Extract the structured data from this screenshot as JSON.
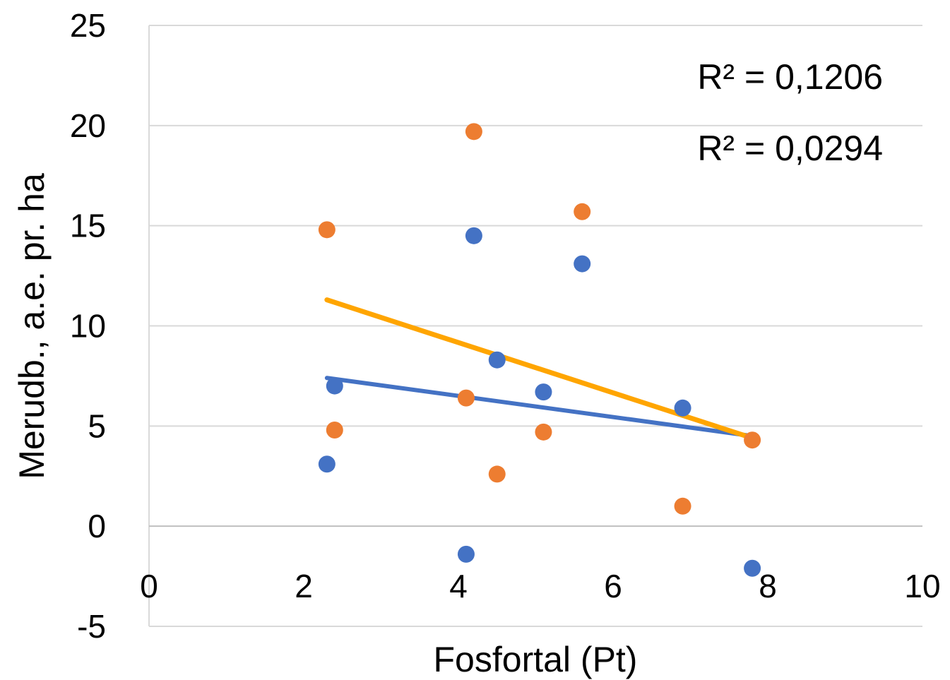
{
  "chart_data": {
    "type": "scatter",
    "xlabel": "Fosfortal (Pt)",
    "ylabel": "Merudb., a.e. pr. ha",
    "xlim": [
      0,
      10
    ],
    "ylim": [
      -5,
      25
    ],
    "xticks": [
      0,
      2,
      4,
      6,
      8,
      10
    ],
    "yticks": [
      -5,
      0,
      5,
      10,
      15,
      20,
      25
    ],
    "xtick_labels": [
      "0",
      "2",
      "4",
      "6",
      "8",
      "10"
    ],
    "ytick_labels": [
      "-5",
      "0",
      "5",
      "10",
      "15",
      "20",
      "25"
    ],
    "grid": "horizontal",
    "legend": "none",
    "series": [
      {
        "color": "#4472c4",
        "points": [
          {
            "x": 2.3,
            "y": 3.1
          },
          {
            "x": 2.4,
            "y": 7.0
          },
          {
            "x": 4.1,
            "y": -1.4
          },
          {
            "x": 4.2,
            "y": 14.5
          },
          {
            "x": 4.5,
            "y": 8.3
          },
          {
            "x": 5.1,
            "y": 6.7
          },
          {
            "x": 5.6,
            "y": 13.1
          },
          {
            "x": 6.9,
            "y": 5.9
          },
          {
            "x": 7.8,
            "y": -2.1
          }
        ],
        "trendline": {
          "x": [
            2.3,
            7.8
          ],
          "y": [
            7.4,
            4.5
          ],
          "color": "#4472c4"
        }
      },
      {
        "color": "#ed7d31",
        "points": [
          {
            "x": 2.3,
            "y": 14.8
          },
          {
            "x": 2.4,
            "y": 4.8
          },
          {
            "x": 4.1,
            "y": 6.4
          },
          {
            "x": 4.2,
            "y": 19.7
          },
          {
            "x": 4.5,
            "y": 2.6
          },
          {
            "x": 5.1,
            "y": 4.7
          },
          {
            "x": 5.6,
            "y": 15.7
          },
          {
            "x": 6.9,
            "y": 1.0
          },
          {
            "x": 7.8,
            "y": 4.3
          }
        ],
        "trendline": {
          "x": [
            2.3,
            7.8
          ],
          "y": [
            11.3,
            4.4
          ],
          "color": "#ffa500"
        }
      }
    ],
    "annotations": [
      {
        "text": "R² = 0,1206"
      },
      {
        "text": "R² = 0,0294"
      }
    ]
  }
}
